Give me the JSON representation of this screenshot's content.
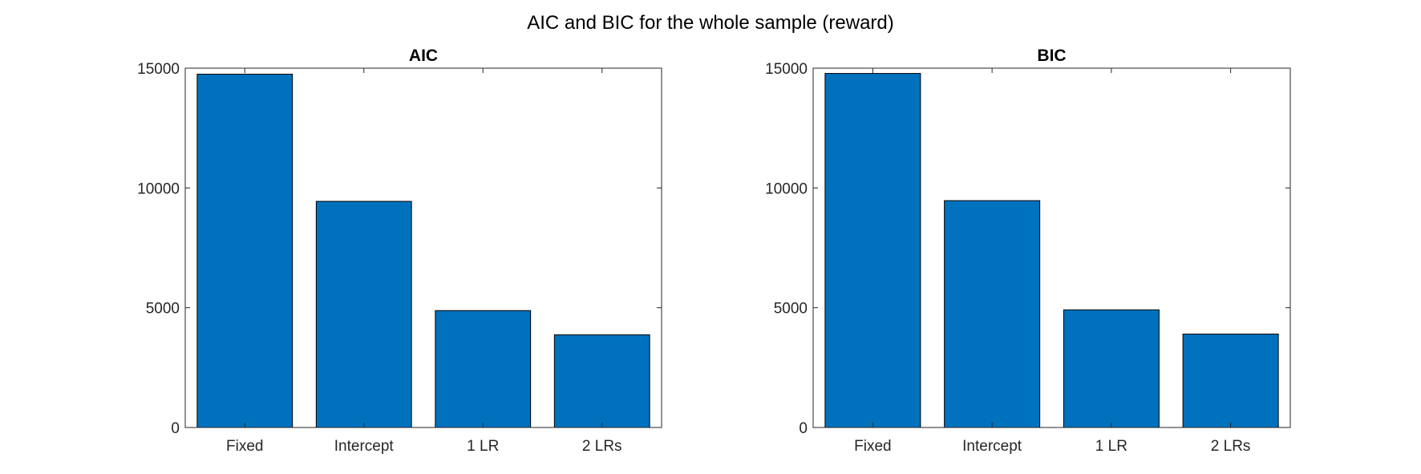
{
  "figure": {
    "title": "AIC and BIC for the whole sample (reward)"
  },
  "colors": {
    "bar_fill": "#0072BD",
    "bar_edge": "#000000",
    "axis": "#262626",
    "background": "#ffffff"
  },
  "chart_data": [
    {
      "type": "bar",
      "title": "AIC",
      "categories": [
        "Fixed",
        "Intercept",
        "1 LR",
        "2 LRs"
      ],
      "values": [
        14750,
        9440,
        4880,
        3870
      ],
      "xlabel": "",
      "ylabel": "",
      "ylim": [
        0,
        15000
      ],
      "yticks": [
        0,
        5000,
        10000,
        15000
      ],
      "ytick_labels": [
        "0",
        "5000",
        "10000",
        "15000"
      ],
      "grid": false,
      "legend": "none"
    },
    {
      "type": "bar",
      "title": "BIC",
      "categories": [
        "Fixed",
        "Intercept",
        "1 LR",
        "2 LRs"
      ],
      "values": [
        14780,
        9470,
        4910,
        3900
      ],
      "xlabel": "",
      "ylabel": "",
      "ylim": [
        0,
        15000
      ],
      "yticks": [
        0,
        5000,
        10000,
        15000
      ],
      "ytick_labels": [
        "0",
        "5000",
        "10000",
        "15000"
      ],
      "grid": false,
      "legend": "none"
    }
  ]
}
